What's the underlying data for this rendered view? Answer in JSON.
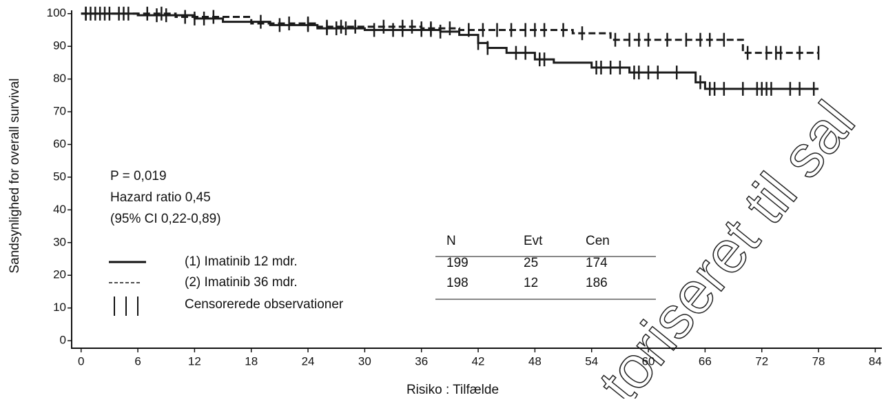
{
  "chart_data": {
    "type": "step",
    "xlabel": "Risiko : Tilfælde",
    "ylabel": "Sandsynlighed for overall survival",
    "xlim": [
      -1,
      84.7
    ],
    "ylim": [
      -2.3,
      101
    ],
    "xticks": [
      0,
      6,
      12,
      18,
      24,
      30,
      36,
      42,
      48,
      54,
      60,
      66,
      72,
      78,
      84
    ],
    "yticks": [
      0,
      10,
      20,
      30,
      40,
      50,
      60,
      70,
      80,
      90,
      100
    ],
    "series": [
      {
        "name": "(1) Imatinib 12 mdr.",
        "color": "#1a1a1a",
        "dash": false,
        "x": [
          0,
          6,
          12,
          15,
          20,
          25,
          30,
          38,
          40,
          42,
          43,
          45,
          48,
          50,
          54,
          58,
          65,
          66,
          78
        ],
        "values": [
          100,
          99.5,
          98.5,
          97.5,
          96.5,
          95.5,
          95,
          94.5,
          93.5,
          91,
          89.5,
          88,
          86,
          85,
          83.5,
          82,
          79,
          77,
          77
        ],
        "censored": [
          0.5,
          1,
          2,
          3,
          4.5,
          8,
          9,
          12,
          13,
          19,
          21,
          24,
          26,
          27,
          28,
          31,
          33,
          34,
          36,
          37,
          38,
          42,
          43,
          46,
          47,
          48.5,
          49,
          54.5,
          55,
          56,
          57,
          58.5,
          59,
          60,
          61,
          63,
          65.5,
          66.5,
          67,
          68,
          70,
          71.5,
          72,
          72.5,
          73,
          75,
          76,
          77.5
        ]
      },
      {
        "name": "(2) Imatinib 36 mdr.",
        "color": "#1a1a1a",
        "dash": true,
        "x": [
          0,
          10,
          18,
          25,
          36,
          40,
          44,
          52,
          56,
          70,
          78
        ],
        "values": [
          100,
          99,
          97,
          96,
          95.5,
          95,
          95,
          94,
          92,
          88,
          88
        ],
        "censored": [
          0.5,
          1.5,
          2.5,
          4,
          5,
          7,
          8.5,
          11,
          14,
          22,
          24,
          26,
          27.5,
          29,
          32,
          34,
          35,
          36,
          37,
          39,
          41,
          42.5,
          44,
          45.5,
          47,
          48,
          49,
          51,
          53,
          56.5,
          58,
          59,
          60,
          62,
          64,
          65.5,
          66.5,
          68,
          70.5,
          72.5,
          73.5,
          74,
          76,
          78
        ]
      }
    ],
    "censor_label": "Censorerede observationer",
    "annotations": [
      "P = 0,019",
      "Hazard ratio 0,45",
      "(95% CI 0,22-0,89)"
    ],
    "table": {
      "columns": [
        "N",
        "Evt",
        "Cen"
      ],
      "rows": [
        [
          199,
          25,
          174
        ],
        [
          198,
          12,
          186
        ]
      ]
    },
    "watermark": "toriseret til sal"
  }
}
